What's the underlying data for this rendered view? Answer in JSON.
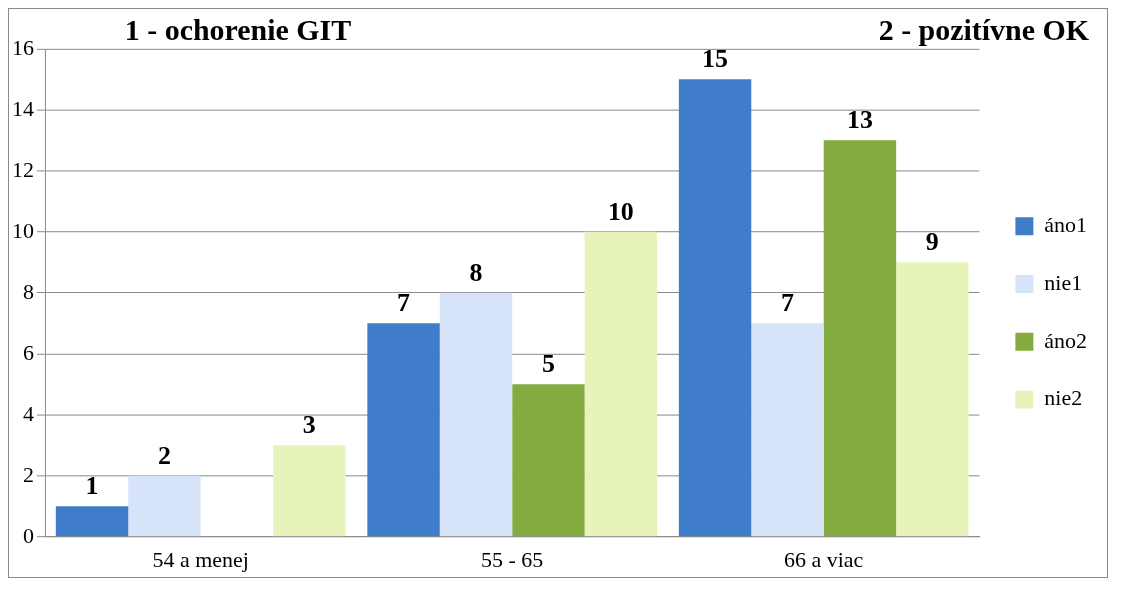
{
  "chart_data": {
    "type": "bar",
    "annotations": [
      "1 - ochorenie GIT",
      "2 - pozitívne OK"
    ],
    "categories": [
      "54 a menej",
      "55 - 65",
      "66 a viac"
    ],
    "series": [
      {
        "name": "áno1",
        "color": "#3f7cc9",
        "values": [
          1,
          7,
          15
        ]
      },
      {
        "name": "nie1",
        "color": "#d6e3f8",
        "values": [
          2,
          8,
          7
        ]
      },
      {
        "name": "áno2",
        "color": "#84ab3f",
        "values": [
          null,
          5,
          13
        ]
      },
      {
        "name": "nie2",
        "color": "#e6f4bc",
        "values": [
          3,
          10,
          9
        ]
      }
    ],
    "ylim": [
      0,
      16
    ],
    "yticks": [
      0,
      2,
      4,
      6,
      8,
      10,
      12,
      14,
      16
    ],
    "grid": "y",
    "legend": "right",
    "data_labels": true
  }
}
